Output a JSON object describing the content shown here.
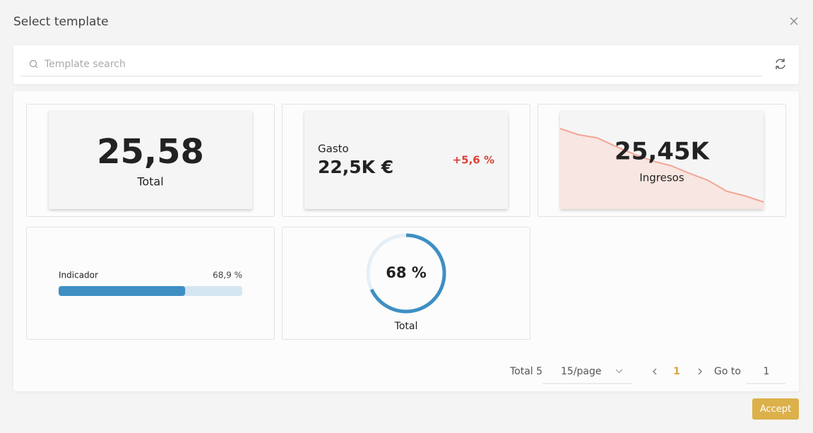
{
  "dialog": {
    "title": "Select template",
    "search_placeholder": "Template search",
    "accept": "Accept"
  },
  "templates": [
    {
      "value": "25,58",
      "label": "Total"
    },
    {
      "label": "Gasto",
      "value": "22,5K €",
      "change": "+5,6 %"
    },
    {
      "value": "25,45K",
      "label": "Ingresos",
      "trend": [
        100,
        92,
        88,
        77,
        67,
        58,
        52,
        42,
        33,
        19,
        13,
        5
      ]
    },
    {
      "label": "Indicador",
      "value": 68.9,
      "value_label": "68,9 %"
    },
    {
      "value": 68,
      "value_label": "68 %",
      "label": "Total"
    }
  ],
  "pagination": {
    "total": "Total 5",
    "page_size": "15/page",
    "current": "1",
    "goto_label": "Go to",
    "goto_value": "1"
  }
}
